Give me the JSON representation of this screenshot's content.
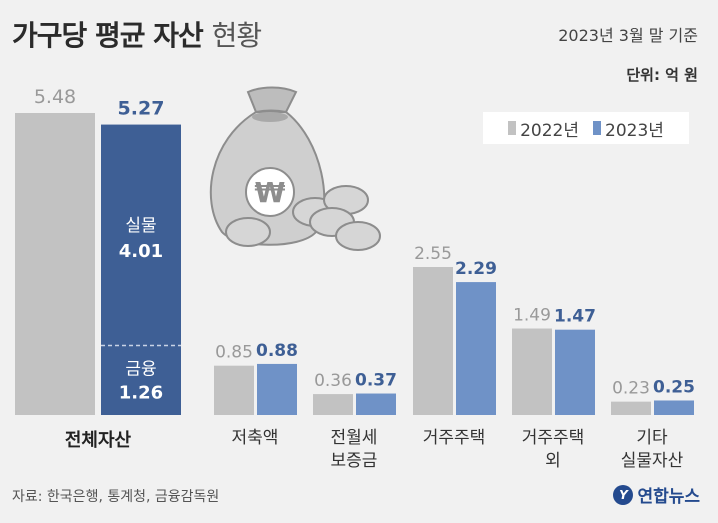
{
  "header": {
    "title_bold": "가구당 평균 자산",
    "title_light": "현황",
    "date_note": "2023년 3월 말 기준",
    "unit_note": "단위: 억 원"
  },
  "legend": [
    {
      "label": "2022년",
      "color": "#c2c2c2"
    },
    {
      "label": "2023년",
      "color": "#6f92c7"
    }
  ],
  "chart_data": [
    {
      "type": "bar",
      "categories": [
        "전체자산"
      ],
      "series": [
        {
          "name": "2022년",
          "values": [
            5.48
          ]
        },
        {
          "name": "2023년",
          "values": [
            5.27
          ]
        }
      ],
      "breakdown_2023": [
        {
          "label": "실물",
          "value": 4.01
        },
        {
          "label": "금융",
          "value": 1.26
        }
      ],
      "value_labels": {
        "2022": "5.48",
        "2023": "5.27",
        "real": "4.01",
        "financial": "1.26"
      },
      "colors": {
        "2022": "#c2c2c2",
        "2023": "#3e5f95"
      }
    },
    {
      "type": "bar",
      "categories": [
        "저축액",
        "전월세\n보증금",
        "거주주택",
        "거주주택\n외",
        "기타\n실물자산"
      ],
      "series": [
        {
          "name": "2022년",
          "values": [
            0.85,
            0.36,
            2.55,
            1.49,
            0.23
          ]
        },
        {
          "name": "2023년",
          "values": [
            0.88,
            0.37,
            2.29,
            1.47,
            0.25
          ]
        }
      ],
      "value_labels": {
        "2022": [
          "0.85",
          "0.36",
          "2.55",
          "1.49",
          "0.23"
        ],
        "2023": [
          "0.88",
          "0.37",
          "2.29",
          "1.47",
          "0.25"
        ]
      },
      "colors": {
        "2022": "#c2c2c2",
        "2023": "#6f92c7"
      }
    }
  ],
  "footer": {
    "source": "자료: 한국은행, 통계청, 금융감독원",
    "logo_text": "연합뉴스"
  }
}
